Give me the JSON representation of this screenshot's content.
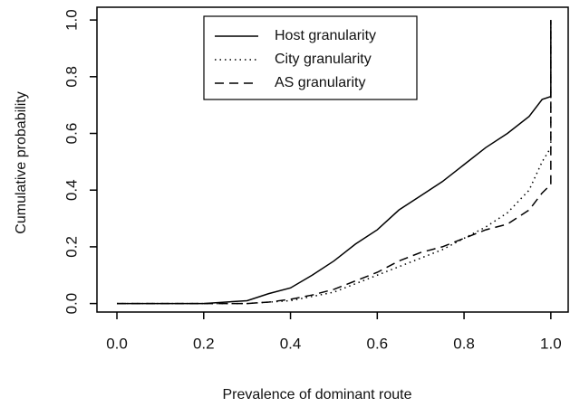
{
  "chart_data": {
    "type": "line",
    "xlabel": "Prevalence of dominant route",
    "ylabel": "Cumulative probability",
    "x": [
      0,
      0.2,
      0.3,
      0.35,
      0.4,
      0.45,
      0.5,
      0.55,
      0.6,
      0.65,
      0.7,
      0.75,
      0.8,
      0.85,
      0.9,
      0.95,
      0.98,
      1.0,
      1.0
    ],
    "series": [
      {
        "name": "Host granularity",
        "color": "#000000",
        "dash": "solid",
        "values": [
          0,
          0,
          0.01,
          0.035,
          0.055,
          0.1,
          0.15,
          0.21,
          0.26,
          0.33,
          0.38,
          0.43,
          0.49,
          0.55,
          0.6,
          0.66,
          0.72,
          0.73,
          1.0
        ]
      },
      {
        "name": "City granularity",
        "color": "#000000",
        "dash": "dotted",
        "values": [
          0,
          0,
          0,
          0.005,
          0.01,
          0.025,
          0.04,
          0.07,
          0.1,
          0.13,
          0.16,
          0.19,
          0.23,
          0.27,
          0.32,
          0.4,
          0.5,
          0.55,
          1.0
        ]
      },
      {
        "name": "AS granularity",
        "color": "#000000",
        "dash": "dashed",
        "values": [
          0,
          0,
          0,
          0.005,
          0.015,
          0.03,
          0.05,
          0.08,
          0.11,
          0.15,
          0.18,
          0.2,
          0.23,
          0.26,
          0.28,
          0.33,
          0.39,
          0.42,
          1.0
        ]
      }
    ],
    "xlim": [
      -0.046,
      1.04
    ],
    "ylim": [
      -0.03,
      1.045
    ],
    "xticks": [
      {
        "value": 0,
        "label": "0.0"
      },
      0.2,
      0.4,
      0.6,
      0.8,
      {
        "value": 1,
        "label": "1.0"
      }
    ],
    "yticks": [
      {
        "value": 0,
        "label": "0.0"
      },
      0.2,
      0.4,
      0.6,
      0.8,
      {
        "value": 1,
        "label": "1.0"
      }
    ],
    "legend": "top"
  }
}
